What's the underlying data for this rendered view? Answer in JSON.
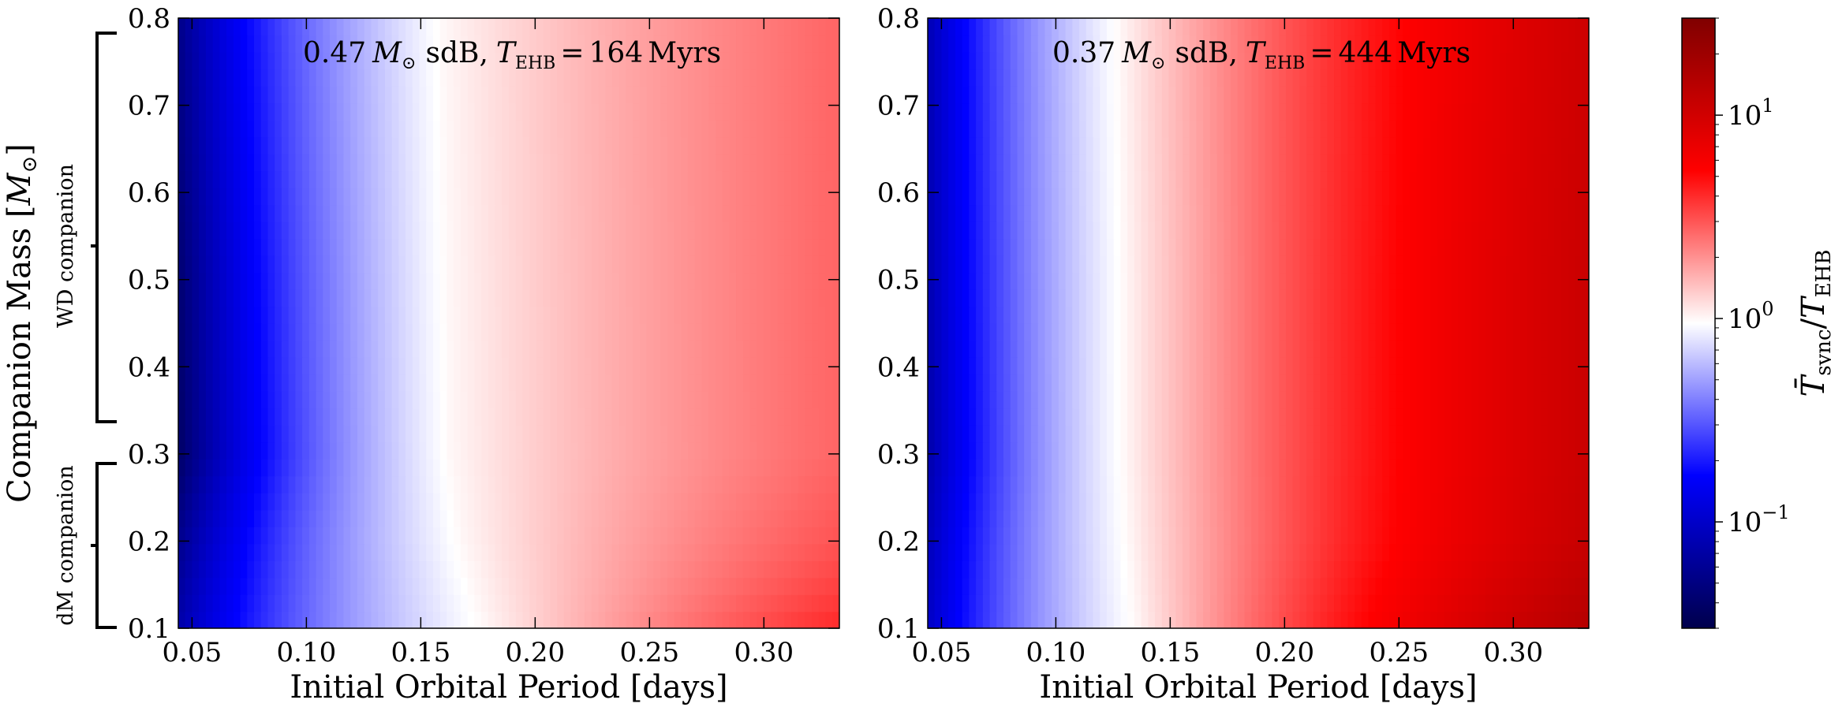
{
  "chart_data": {
    "type": "heatmap",
    "panels": [
      {
        "title_prefix": "0.47",
        "title_unit": "M",
        "title_unit_sub": "⊙",
        "title_kind": "sdB,",
        "title_T": "T",
        "title_T_sub": "EHB",
        "title_eq": "=",
        "title_value": "164",
        "title_value_unit": "Myrs",
        "xlabel": "Initial Orbital Period [days]",
        "xticks": [
          "0.05",
          "0.10",
          "0.15",
          "0.20",
          "0.25",
          "0.30"
        ],
        "yticks": [
          "0.1",
          "0.2",
          "0.3",
          "0.4",
          "0.5",
          "0.6",
          "0.7",
          "0.8"
        ],
        "xlim": [
          0.044,
          0.333
        ],
        "ylim": [
          0.1,
          0.8
        ],
        "contour_samples": {
          "y": [
            0.1,
            0.2,
            0.3,
            0.5,
            0.8
          ],
          "period_ratio_0.1": [
            0.052,
            0.058,
            0.065,
            0.063,
            0.058
          ],
          "period_ratio_1": [
            0.178,
            0.168,
            0.163,
            0.162,
            0.16
          ],
          "period_ratio_3": [
            0.29,
            0.33,
            0.36,
            0.36,
            0.36
          ]
        }
      },
      {
        "title_prefix": "0.37",
        "title_unit": "M",
        "title_unit_sub": "⊙",
        "title_kind": "sdB,",
        "title_T": "T",
        "title_T_sub": "EHB",
        "title_eq": "=",
        "title_value": "444",
        "title_value_unit": "Myrs",
        "xlabel": "Initial Orbital Period [days]",
        "xticks": [
          "0.05",
          "0.10",
          "0.15",
          "0.20",
          "0.25",
          "0.30"
        ],
        "yticks": [
          "0.1",
          "0.2",
          "0.3",
          "0.4",
          "0.5",
          "0.6",
          "0.7",
          "0.8"
        ],
        "xlim": [
          0.044,
          0.333
        ],
        "ylim": [
          0.1,
          0.8
        ],
        "contour_samples": {
          "y": [
            0.1,
            0.2,
            0.3,
            0.5,
            0.8
          ],
          "period_ratio_0.1": [
            0.045,
            0.047,
            0.05,
            0.049,
            0.048
          ],
          "period_ratio_1": [
            0.135,
            0.132,
            0.13,
            0.13,
            0.128
          ],
          "period_ratio_3": [
            0.195,
            0.2,
            0.2,
            0.2,
            0.2
          ]
        }
      }
    ],
    "ylabel_main": "Companion Mass [",
    "ylabel_unit": "M",
    "ylabel_unit_sub": "⊙",
    "ylabel_close": "]",
    "bracket_upper_label": "WD companion",
    "bracket_lower_label": "dM companion",
    "colorbar": {
      "scale": "log",
      "range": [
        0.03,
        30
      ],
      "ticks": [
        {
          "value": 0.1,
          "base": "10",
          "exp": "−1"
        },
        {
          "value": 1,
          "base": "10",
          "exp": "0"
        },
        {
          "value": 10,
          "base": "10",
          "exp": "1"
        }
      ],
      "label_T": "T̄",
      "label_T_sub": "sync",
      "label_slash": "/",
      "label_T2": "T",
      "label_T2_sub": "EHB",
      "colormap": "seismic"
    }
  }
}
